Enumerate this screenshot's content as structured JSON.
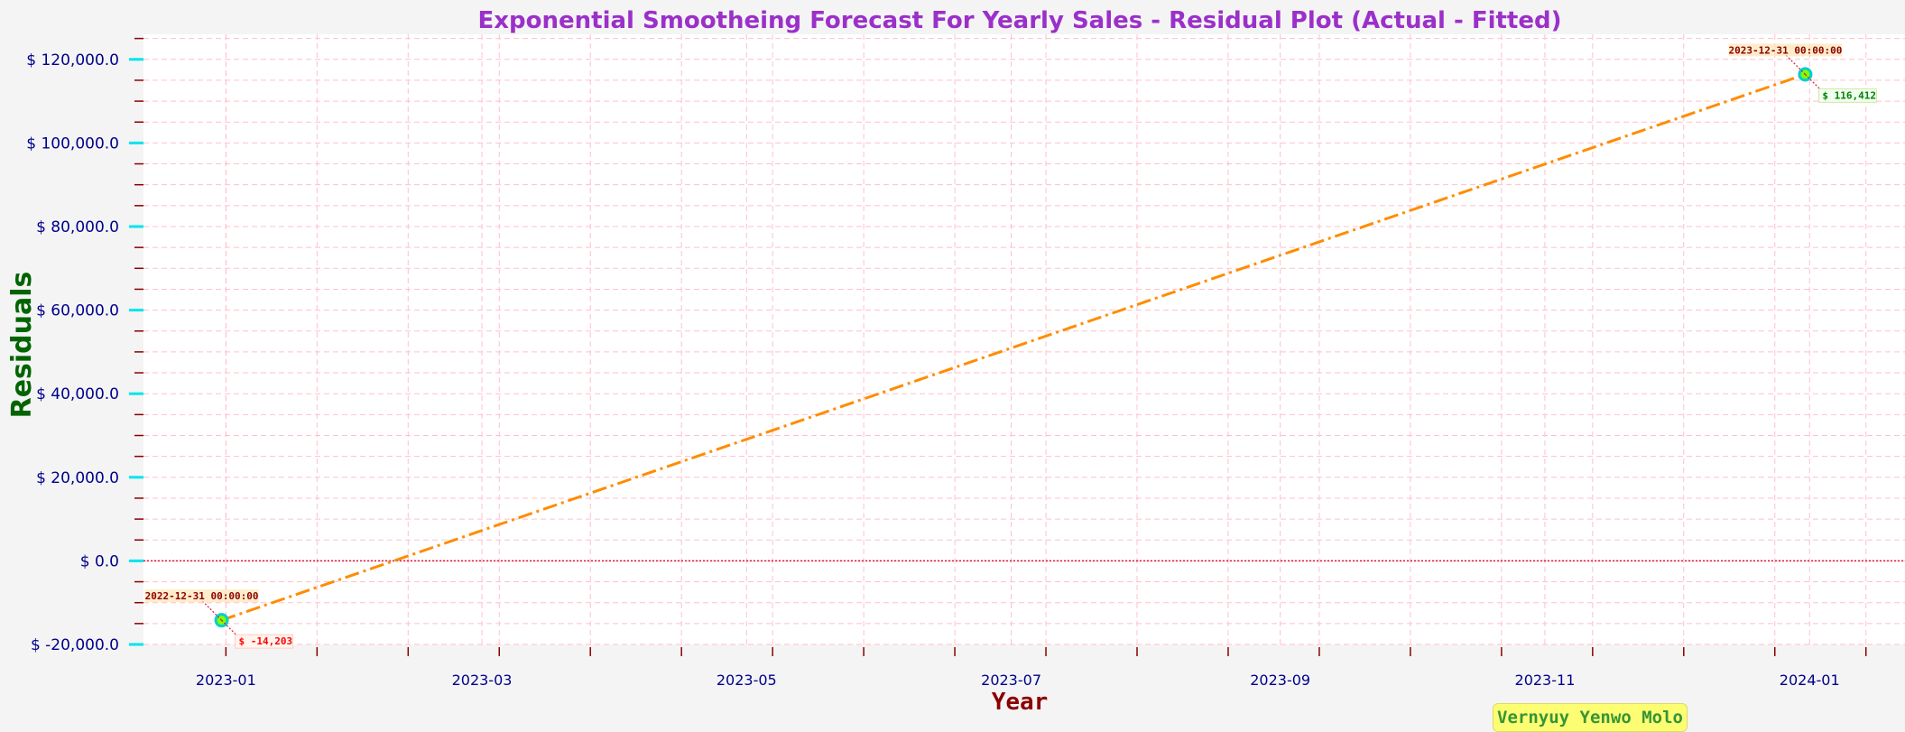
{
  "chart_data": {
    "type": "line",
    "title": "Exponential Smootheing Forecast For Yearly Sales - Residual Plot (Actual - Fitted)",
    "xlabel": "Year",
    "ylabel": "Residuals",
    "x": [
      "2022-12-31",
      "2023-12-31"
    ],
    "series": [
      {
        "values": [
          -14203,
          116412
        ]
      }
    ],
    "xlim": [
      "2022-12-13",
      "2024-01-23"
    ],
    "ylim": [
      -20000,
      126000
    ],
    "x_ticks": [
      "2023-01",
      "2023-03",
      "2023-05",
      "2023-07",
      "2023-09",
      "2023-11",
      "2024-01"
    ],
    "y_ticks": [
      -20000,
      0,
      20000,
      40000,
      60000,
      80000,
      100000,
      120000
    ],
    "y_tick_labels": [
      "$ -20,000.0",
      "$ 0.0",
      "$ 20,000.0",
      "$ 40,000.0",
      "$ 60,000.0",
      "$ 80,000.0",
      "$ 100,000.0",
      "$ 120,000.0"
    ],
    "reference_line": 0,
    "annotations": [
      {
        "date_label": "2022-12-31 00:00:00",
        "value_label": "$ -14,203"
      },
      {
        "date_label": "2023-12-31 00:00:00",
        "value_label": "$ 116,412"
      }
    ],
    "grid": true,
    "colors": {
      "line": "#ff8c00",
      "marker_fill": "#7fff00",
      "marker_edge": "#00ced1",
      "grid": "#ffc0cb",
      "zero_line": "#dc143c",
      "ytick_major": "#00e5ee",
      "ytick_minor": "#8b0000",
      "xtick": "#8b0000",
      "title": "#9b30c9",
      "ylabel": "#006400",
      "xlabel": "#8b0000",
      "tick_labels": "#00008b",
      "negative_value": "#ff0000",
      "positive_value": "#008000",
      "date_text": "#8b0000"
    }
  },
  "watermark": "Vernyuy Yenwo Molo"
}
